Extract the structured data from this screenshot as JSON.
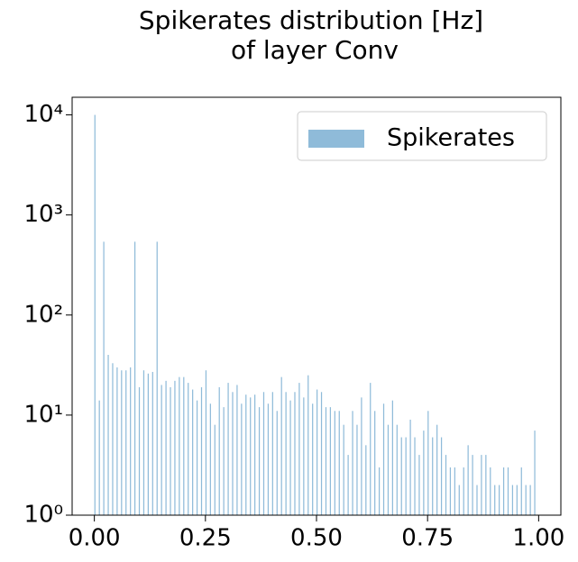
{
  "chart_data": {
    "type": "histogram",
    "title": [
      "Spikerates distribution [Hz]",
      "of layer Conv"
    ],
    "bins": [
      0,
      0.01,
      0.02,
      0.03,
      0.04,
      0.05,
      0.06,
      0.07,
      0.08,
      0.09,
      0.1,
      0.11,
      0.12,
      0.13,
      0.14,
      0.15,
      0.16,
      0.17,
      0.18,
      0.19,
      0.2,
      0.21,
      0.22,
      0.23,
      0.24,
      0.25,
      0.26,
      0.27,
      0.28,
      0.29,
      0.3,
      0.31,
      0.32,
      0.33,
      0.34,
      0.35,
      0.36,
      0.37,
      0.38,
      0.39,
      0.4,
      0.41,
      0.42,
      0.43,
      0.44,
      0.45,
      0.46,
      0.47,
      0.48,
      0.49,
      0.5,
      0.51,
      0.52,
      0.53,
      0.54,
      0.55,
      0.56,
      0.57,
      0.58,
      0.59,
      0.6,
      0.61,
      0.62,
      0.63,
      0.64,
      0.65,
      0.66,
      0.67,
      0.68,
      0.69,
      0.7,
      0.71,
      0.72,
      0.73,
      0.74,
      0.75,
      0.76,
      0.77,
      0.78,
      0.79,
      0.8,
      0.81,
      0.82,
      0.83,
      0.84,
      0.85,
      0.86,
      0.87,
      0.88,
      0.89,
      0.9,
      0.91,
      0.92,
      0.93,
      0.94,
      0.95,
      0.96,
      0.97,
      0.98,
      0.99,
      1
    ],
    "series": [
      {
        "name": "Spikerates",
        "color": "#1f77b4",
        "values": [
          10000,
          14,
          540,
          40,
          33,
          30,
          28,
          28,
          30,
          540,
          19,
          28,
          26,
          27,
          540,
          20,
          22,
          19,
          22,
          24,
          24,
          21,
          18,
          14,
          19,
          28,
          13,
          8,
          19,
          12,
          21,
          17,
          20,
          13,
          16,
          15,
          16,
          12,
          17,
          13,
          17,
          11,
          24,
          17,
          14,
          17,
          21,
          15,
          25,
          13,
          18,
          17,
          12,
          12,
          11,
          11,
          8,
          4,
          11,
          8,
          15,
          5,
          21,
          11,
          3,
          13,
          8,
          14,
          8,
          6,
          6,
          9,
          6,
          4,
          7,
          11,
          6,
          8,
          6,
          4,
          3,
          3,
          2,
          3,
          5,
          4,
          2,
          4,
          4,
          3,
          2,
          2,
          3,
          3,
          2,
          2,
          3,
          2,
          2,
          7
        ]
      }
    ],
    "xlim": [
      -0.05,
      1.05
    ],
    "xticks": [
      {
        "value": 0,
        "label": "0.00"
      },
      {
        "value": 0.25,
        "label": "0.25"
      },
      {
        "value": 0.5,
        "label": "0.50"
      },
      {
        "value": 0.75,
        "label": "0.75"
      },
      {
        "value": 1,
        "label": "1.00"
      }
    ],
    "ylim": [
      1,
      15000
    ],
    "log_y": true,
    "yticks": [
      {
        "value": 1,
        "label": "10⁰"
      },
      {
        "value": 10,
        "label": "10¹"
      },
      {
        "value": 100,
        "label": "10²"
      },
      {
        "value": 1000,
        "label": "10³"
      },
      {
        "value": 10000,
        "label": "10⁴"
      }
    ],
    "legend": "upper right"
  }
}
